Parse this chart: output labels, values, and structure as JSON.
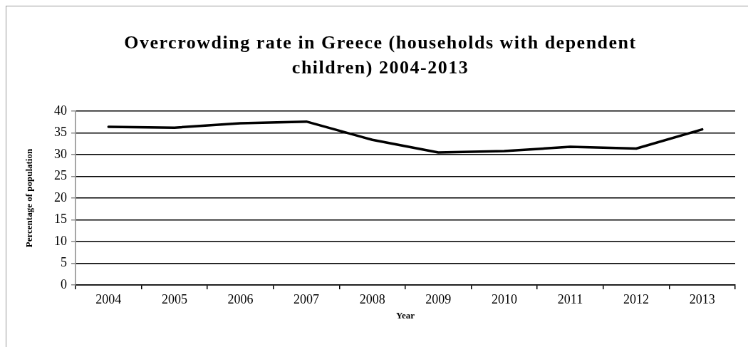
{
  "chart_data": {
    "type": "line",
    "title": "Overcrowding rate in Greece (households with dependent children) 2004-2013",
    "xlabel": "Year",
    "ylabel": "Percentage of population",
    "categories": [
      "2004",
      "2005",
      "2006",
      "2007",
      "2008",
      "2009",
      "2010",
      "2011",
      "2012",
      "2013"
    ],
    "series": [
      {
        "color": "#000000",
        "values": [
          36.4,
          36.2,
          37.2,
          37.6,
          33.4,
          30.5,
          30.8,
          31.8,
          31.4,
          35.8
        ]
      }
    ],
    "ylim": [
      0,
      40
    ],
    "yticks": [
      0,
      5,
      10,
      15,
      20,
      25,
      30,
      35,
      40
    ],
    "grid": "y",
    "marker": "none",
    "line_style": "solid"
  }
}
